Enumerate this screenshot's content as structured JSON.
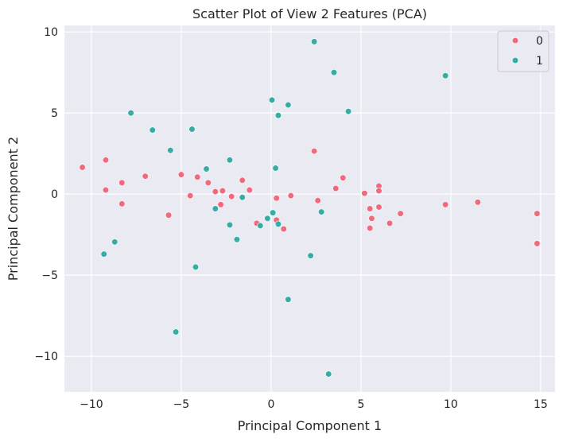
{
  "chart_data": {
    "type": "scatter",
    "title": "Scatter Plot of View 2 Features (PCA)",
    "xlabel": "Principal Component 1",
    "ylabel": "Principal Component 2",
    "xlim": [
      -11.5,
      15.8
    ],
    "ylim": [
      -12.2,
      10.4
    ],
    "xticks": [
      -10,
      -5,
      0,
      5,
      10,
      15
    ],
    "yticks": [
      -10,
      -5,
      0,
      5,
      10
    ],
    "xtick_labels": [
      "−10",
      "−5",
      "0",
      "5",
      "10",
      "15"
    ],
    "ytick_labels": [
      "−10",
      "−5",
      "0",
      "5",
      "10"
    ],
    "grid": true,
    "legend_position": "top-right",
    "series": [
      {
        "name": "0",
        "color": "#f0697d",
        "points": [
          [
            -10.5,
            1.65
          ],
          [
            -9.2,
            2.1
          ],
          [
            -9.2,
            0.25
          ],
          [
            -8.3,
            0.7
          ],
          [
            -8.3,
            -0.6
          ],
          [
            -7.0,
            1.1
          ],
          [
            -5.7,
            -1.3
          ],
          [
            -5.0,
            1.2
          ],
          [
            -4.5,
            -0.1
          ],
          [
            -4.1,
            1.05
          ],
          [
            -3.5,
            0.7
          ],
          [
            -3.1,
            0.15
          ],
          [
            -2.8,
            -0.65
          ],
          [
            -2.7,
            0.2
          ],
          [
            -2.2,
            -0.15
          ],
          [
            -1.6,
            0.85
          ],
          [
            -1.6,
            -0.2
          ],
          [
            -1.2,
            0.25
          ],
          [
            -0.8,
            -1.8
          ],
          [
            0.3,
            -0.25
          ],
          [
            0.3,
            -1.6
          ],
          [
            0.7,
            -2.15
          ],
          [
            1.1,
            -0.1
          ],
          [
            2.4,
            2.65
          ],
          [
            2.6,
            -0.4
          ],
          [
            3.6,
            0.35
          ],
          [
            4.0,
            1.0
          ],
          [
            5.2,
            0.05
          ],
          [
            5.5,
            -0.9
          ],
          [
            5.5,
            -2.1
          ],
          [
            5.6,
            -1.5
          ],
          [
            6.0,
            0.5
          ],
          [
            6.0,
            -0.8
          ],
          [
            6.0,
            0.2
          ],
          [
            6.6,
            -1.8
          ],
          [
            7.2,
            -1.2
          ],
          [
            9.7,
            -0.65
          ],
          [
            11.5,
            -0.5
          ],
          [
            14.8,
            -1.2
          ],
          [
            14.8,
            -3.05
          ]
        ]
      },
      {
        "name": "1",
        "color": "#36ada4",
        "points": [
          [
            -9.3,
            -3.7
          ],
          [
            -8.7,
            -2.95
          ],
          [
            -7.8,
            5.0
          ],
          [
            -6.6,
            3.95
          ],
          [
            -5.6,
            2.7
          ],
          [
            -5.3,
            -8.5
          ],
          [
            -4.4,
            4.0
          ],
          [
            -4.2,
            -4.5
          ],
          [
            -3.6,
            1.55
          ],
          [
            -3.1,
            -0.9
          ],
          [
            -2.3,
            2.1
          ],
          [
            -2.3,
            -1.9
          ],
          [
            -1.9,
            -2.8
          ],
          [
            -1.6,
            -0.2
          ],
          [
            -0.6,
            -1.95
          ],
          [
            -0.2,
            -1.5
          ],
          [
            0.05,
            5.8
          ],
          [
            0.1,
            -1.15
          ],
          [
            0.25,
            1.6
          ],
          [
            0.4,
            4.85
          ],
          [
            0.4,
            -1.85
          ],
          [
            0.95,
            5.5
          ],
          [
            0.95,
            -6.5
          ],
          [
            2.2,
            -3.8
          ],
          [
            2.4,
            9.4
          ],
          [
            2.8,
            -1.1
          ],
          [
            3.2,
            -11.1
          ],
          [
            3.5,
            7.5
          ],
          [
            4.3,
            5.1
          ],
          [
            9.7,
            7.3
          ]
        ]
      }
    ]
  }
}
